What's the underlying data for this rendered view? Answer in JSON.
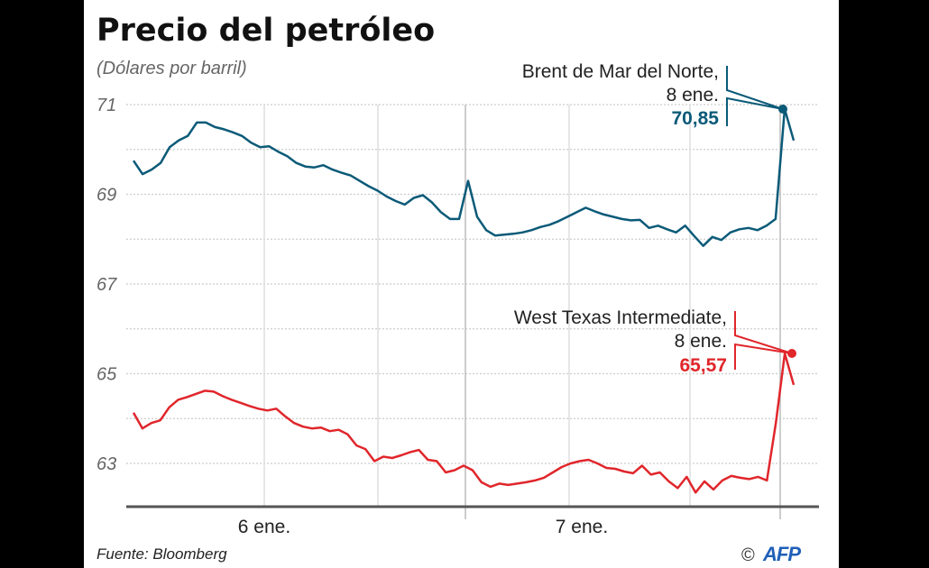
{
  "chart_data": {
    "type": "line",
    "title": "Precio del petróleo",
    "subtitle": "(Dólares por barril)",
    "ylim": [
      62.05,
      71.3
    ],
    "y_ticks": [
      63,
      65,
      67,
      69,
      71
    ],
    "y_tick_labels": [
      "63",
      "65",
      "67",
      "69",
      "71"
    ],
    "x_tick_labels": [
      "6 ene.",
      "7 ene."
    ],
    "grid": true,
    "series": [
      {
        "name": "Brent de Mar del Norte",
        "color": "#0b5a78",
        "values": [
          69.75,
          69.45,
          69.55,
          69.7,
          70.05,
          70.2,
          70.3,
          70.6,
          70.6,
          70.5,
          70.45,
          70.38,
          70.3,
          70.15,
          70.05,
          70.07,
          69.95,
          69.85,
          69.7,
          69.62,
          69.6,
          69.65,
          69.55,
          69.48,
          69.42,
          69.3,
          69.18,
          69.08,
          68.95,
          68.85,
          68.77,
          68.92,
          68.98,
          68.82,
          68.6,
          68.45,
          68.45,
          69.3,
          68.5,
          68.2,
          68.08,
          68.1,
          68.12,
          68.15,
          68.2,
          68.27,
          68.32,
          68.4,
          68.5,
          68.6,
          68.7,
          68.62,
          68.55,
          68.5,
          68.45,
          68.42,
          68.43,
          68.25,
          68.3,
          68.22,
          68.15,
          68.3,
          68.07,
          67.85,
          68.05,
          67.98,
          68.15,
          68.22,
          68.25,
          68.2,
          68.3,
          68.45,
          70.9,
          70.2
        ],
        "annotation": {
          "label": "Brent de Mar del Norte,",
          "date": "8 ene.",
          "value": "70,85"
        }
      },
      {
        "name": "West Texas Intermediate",
        "color": "#e0262b",
        "values": [
          64.13,
          63.78,
          63.9,
          63.96,
          64.25,
          64.42,
          64.48,
          64.55,
          64.62,
          64.6,
          64.5,
          64.42,
          64.35,
          64.28,
          64.22,
          64.18,
          64.22,
          64.05,
          63.9,
          63.82,
          63.78,
          63.8,
          63.72,
          63.75,
          63.65,
          63.4,
          63.32,
          63.05,
          63.15,
          63.12,
          63.18,
          63.25,
          63.3,
          63.08,
          63.05,
          62.8,
          62.85,
          62.95,
          62.85,
          62.58,
          62.48,
          62.55,
          62.52,
          62.55,
          62.58,
          62.62,
          62.68,
          62.8,
          62.92,
          63.0,
          63.05,
          63.08,
          63.0,
          62.9,
          62.88,
          62.82,
          62.78,
          62.95,
          62.75,
          62.8,
          62.6,
          62.45,
          62.7,
          62.35,
          62.6,
          62.42,
          62.62,
          62.72,
          62.68,
          62.65,
          62.7,
          62.62,
          63.9,
          65.45,
          64.75
        ],
        "annotation": {
          "label": "West Texas Intermediate,",
          "date": "8 ene.",
          "value": "65,57"
        }
      }
    ],
    "source": "Fuente: Bloomberg",
    "credit": "©",
    "logo": "AFP"
  }
}
